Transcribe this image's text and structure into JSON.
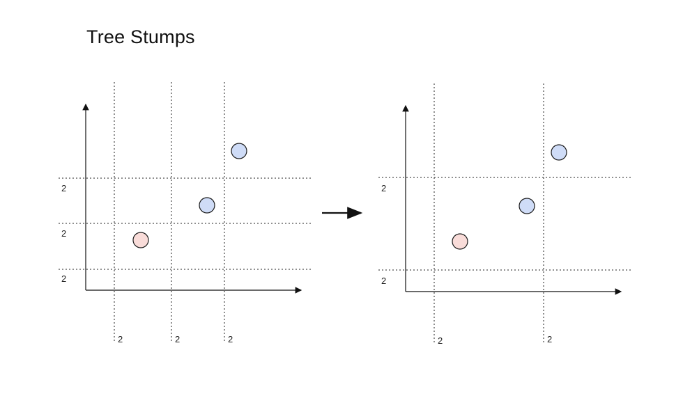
{
  "title": "Tree Stumps",
  "colors": {
    "class_blue": "#cfdcf7",
    "class_red": "#f9dcd9",
    "stroke": "#1a1a1a"
  },
  "panels": [
    {
      "name": "before",
      "vertical_split_labels": [
        "2",
        "2",
        "2"
      ],
      "horizontal_split_labels": [
        "2",
        "2",
        "2"
      ]
    },
    {
      "name": "after",
      "vertical_split_labels": [
        "2",
        "2"
      ],
      "horizontal_split_labels": [
        "2",
        "2"
      ]
    }
  ],
  "transition_arrow": "right-arrow"
}
